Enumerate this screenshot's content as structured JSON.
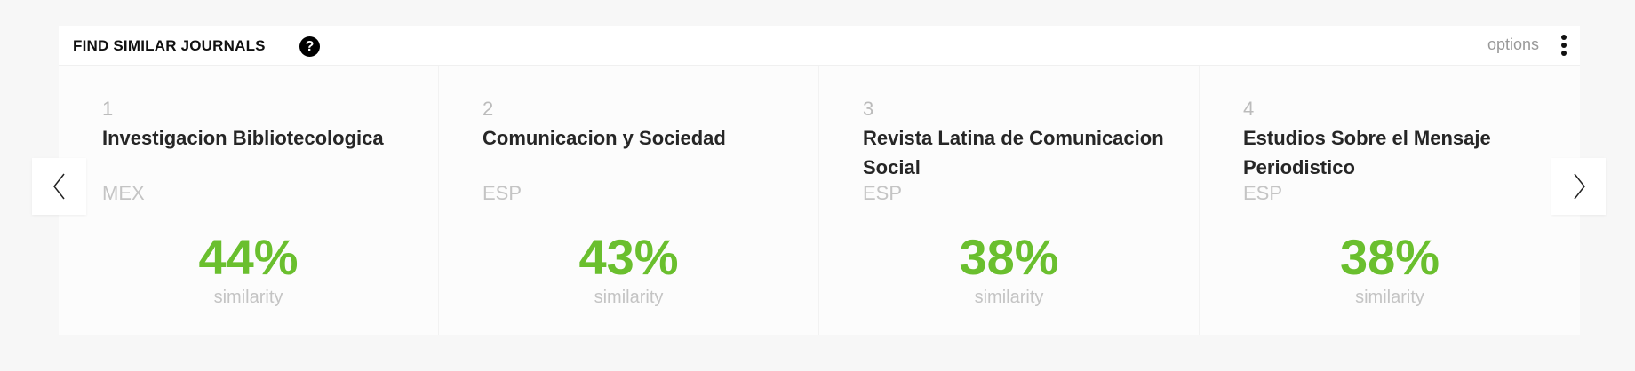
{
  "header": {
    "title": "FIND SIMILAR JOURNALS",
    "help_icon": "?",
    "options_label": "options"
  },
  "accent_color": "#6abf2e",
  "cards": [
    {
      "rank": "1",
      "title": "Investigacion Bibliotecologica",
      "country": "MEX",
      "similarity": "44%",
      "similarity_label": "similarity"
    },
    {
      "rank": "2",
      "title": "Comunicacion y Sociedad",
      "country": "ESP",
      "similarity": "43%",
      "similarity_label": "similarity"
    },
    {
      "rank": "3",
      "title": "Revista Latina de Comunicacion Social",
      "country": "ESP",
      "similarity": "38%",
      "similarity_label": "similarity"
    },
    {
      "rank": "4",
      "title": "Estudios Sobre el Mensaje Periodistico",
      "country": "ESP",
      "similarity": "38%",
      "similarity_label": "similarity"
    }
  ]
}
